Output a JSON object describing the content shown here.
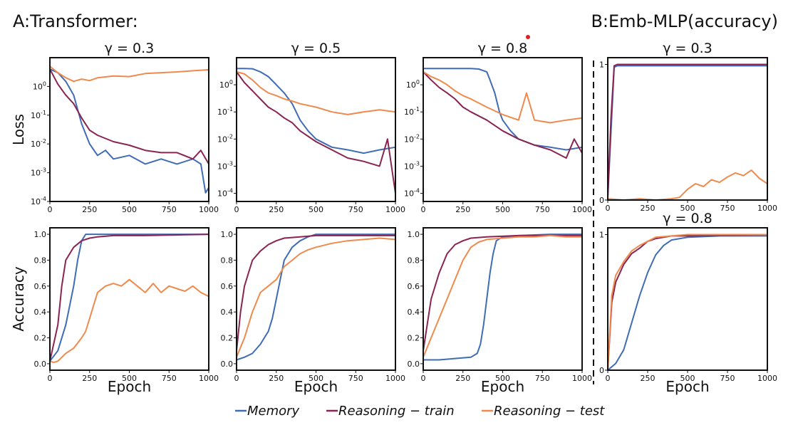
{
  "figure": {
    "panel_a_title": "A:Transformer:",
    "panel_b_title": "B:Emb-MLP(accuracy)"
  },
  "legend": [
    {
      "key": "memory",
      "label": "Memory",
      "color": "#3f6cb5"
    },
    {
      "key": "train",
      "label": "Reasoning − train",
      "color": "#8a2452"
    },
    {
      "key": "test",
      "label": "Reasoning − test",
      "color": "#ef8a4c"
    }
  ],
  "chart_data": [
    {
      "id": "loss-g03",
      "type": "line",
      "title": "γ = 0.3",
      "ylabel": "Loss",
      "xlabel": "",
      "xlim": [
        0,
        1000
      ],
      "xticks": [
        0,
        250,
        500,
        750,
        1000
      ],
      "xtick_labels": [
        "0",
        "250",
        "500",
        "750",
        "1000"
      ],
      "yscale": "log",
      "ylim": [
        0.0001,
        10
      ],
      "yticks": [
        0.0001,
        0.001,
        0.01,
        0.1,
        1
      ],
      "ytick_labels": [
        "10^-4",
        "10^-3",
        "10^-2",
        "10^-1",
        "10^0"
      ],
      "series": [
        {
          "key": "memory",
          "x": [
            0,
            50,
            100,
            150,
            200,
            250,
            300,
            350,
            400,
            500,
            600,
            700,
            800,
            900,
            950,
            980,
            1000
          ],
          "y": [
            4,
            3,
            1.5,
            0.5,
            0.05,
            0.01,
            0.004,
            0.006,
            0.003,
            0.004,
            0.002,
            0.003,
            0.002,
            0.003,
            0.002,
            0.0002,
            0.0003
          ]
        },
        {
          "key": "train",
          "x": [
            0,
            50,
            100,
            150,
            200,
            250,
            300,
            400,
            500,
            600,
            700,
            800,
            900,
            950,
            1000
          ],
          "y": [
            4,
            1.2,
            0.5,
            0.25,
            0.08,
            0.03,
            0.02,
            0.012,
            0.009,
            0.006,
            0.005,
            0.005,
            0.003,
            0.006,
            0.002
          ]
        },
        {
          "key": "test",
          "x": [
            0,
            50,
            100,
            150,
            200,
            250,
            300,
            400,
            500,
            600,
            700,
            800,
            900,
            1000
          ],
          "y": [
            5,
            3,
            2,
            1.5,
            1.8,
            1.6,
            2,
            2.3,
            2.2,
            2.8,
            3,
            3.2,
            3.5,
            3.8
          ]
        }
      ]
    },
    {
      "id": "loss-g05",
      "type": "line",
      "title": "γ = 0.5",
      "ylabel": "",
      "xlabel": "",
      "xlim": [
        0,
        1000
      ],
      "xticks": [
        0,
        250,
        500,
        750,
        1000
      ],
      "xtick_labels": [
        "0",
        "250",
        "500",
        "750",
        "1000"
      ],
      "yscale": "log",
      "ylim": [
        5e-05,
        10
      ],
      "yticks": [
        0.0001,
        0.001,
        0.01,
        0.1,
        1
      ],
      "ytick_labels": [
        "10^-4",
        "10^-3",
        "10^-2",
        "10^-1",
        "10^0"
      ],
      "series": [
        {
          "key": "memory",
          "x": [
            0,
            50,
            100,
            150,
            200,
            250,
            300,
            350,
            400,
            450,
            500,
            600,
            700,
            800,
            900,
            1000
          ],
          "y": [
            4,
            4,
            3.9,
            3,
            2,
            1,
            0.5,
            0.2,
            0.05,
            0.02,
            0.01,
            0.005,
            0.004,
            0.003,
            0.004,
            0.005
          ]
        },
        {
          "key": "train",
          "x": [
            0,
            50,
            100,
            150,
            200,
            250,
            300,
            350,
            400,
            500,
            600,
            700,
            800,
            900,
            950,
            1000
          ],
          "y": [
            3,
            1.2,
            0.6,
            0.3,
            0.15,
            0.1,
            0.06,
            0.04,
            0.02,
            0.008,
            0.004,
            0.002,
            0.0015,
            0.001,
            0.01,
            0.0001
          ]
        },
        {
          "key": "test",
          "x": [
            0,
            50,
            100,
            150,
            200,
            250,
            300,
            350,
            400,
            500,
            600,
            700,
            800,
            900,
            1000
          ],
          "y": [
            3,
            2.5,
            1.5,
            0.8,
            0.5,
            0.4,
            0.3,
            0.25,
            0.2,
            0.15,
            0.1,
            0.08,
            0.1,
            0.12,
            0.1
          ]
        }
      ]
    },
    {
      "id": "loss-g08",
      "type": "line",
      "title": "γ = 0.8",
      "ylabel": "",
      "xlabel": "",
      "xlim": [
        0,
        1000
      ],
      "xticks": [
        0,
        250,
        500,
        750,
        1000
      ],
      "xtick_labels": [
        "0",
        "250",
        "500",
        "750",
        "1000"
      ],
      "yscale": "log",
      "ylim": [
        5e-05,
        10
      ],
      "yticks": [
        0.0001,
        0.001,
        0.01,
        0.1,
        1
      ],
      "ytick_labels": [
        "10^-4",
        "10^-3",
        "10^-2",
        "10^-1",
        "10^0"
      ],
      "series": [
        {
          "key": "memory",
          "x": [
            0,
            100,
            200,
            300,
            350,
            400,
            420,
            450,
            480,
            500,
            550,
            600,
            700,
            800,
            900,
            1000
          ],
          "y": [
            4,
            4,
            4,
            4,
            3.8,
            3,
            1.5,
            0.5,
            0.1,
            0.05,
            0.02,
            0.01,
            0.006,
            0.005,
            0.004,
            0.005
          ]
        },
        {
          "key": "train",
          "x": [
            0,
            50,
            100,
            150,
            200,
            250,
            300,
            400,
            500,
            600,
            700,
            800,
            900,
            950,
            1000
          ],
          "y": [
            3,
            1.5,
            0.8,
            0.5,
            0.3,
            0.15,
            0.1,
            0.05,
            0.02,
            0.01,
            0.006,
            0.004,
            0.002,
            0.01,
            0.003
          ]
        },
        {
          "key": "test",
          "x": [
            0,
            50,
            100,
            150,
            200,
            250,
            300,
            400,
            500,
            600,
            650,
            700,
            800,
            900,
            1000
          ],
          "y": [
            3,
            2,
            1.5,
            1,
            0.6,
            0.4,
            0.3,
            0.15,
            0.08,
            0.05,
            0.5,
            0.05,
            0.04,
            0.05,
            0.06
          ]
        }
      ]
    },
    {
      "id": "acc-g03",
      "type": "line",
      "title": "",
      "ylabel": "Accuracy",
      "xlabel": "Epoch",
      "xlim": [
        0,
        1000
      ],
      "xticks": [
        0,
        250,
        500,
        750,
        1000
      ],
      "xtick_labels": [
        "0",
        "250",
        "500",
        "750",
        "1000"
      ],
      "yscale": "linear",
      "ylim": [
        -0.05,
        1.05
      ],
      "yticks": [
        0,
        0.2,
        0.4,
        0.6,
        0.8,
        1.0
      ],
      "ytick_labels": [
        "0.0",
        "0.2",
        "0.4",
        "0.6",
        "0.8",
        "1.0"
      ],
      "series": [
        {
          "key": "memory",
          "x": [
            0,
            50,
            100,
            150,
            175,
            200,
            225,
            250,
            300,
            500,
            750,
            1000
          ],
          "y": [
            0.02,
            0.1,
            0.3,
            0.6,
            0.8,
            0.95,
            1.0,
            1.0,
            1.0,
            1.0,
            1.0,
            1.0
          ]
        },
        {
          "key": "train",
          "x": [
            0,
            50,
            75,
            100,
            150,
            200,
            250,
            300,
            400,
            600,
            800,
            1000
          ],
          "y": [
            0.02,
            0.3,
            0.6,
            0.8,
            0.9,
            0.95,
            0.97,
            0.98,
            0.99,
            0.99,
            0.995,
            1.0
          ]
        },
        {
          "key": "test",
          "x": [
            0,
            25,
            50,
            100,
            150,
            200,
            225,
            250,
            275,
            300,
            350,
            400,
            450,
            500,
            550,
            600,
            650,
            700,
            750,
            800,
            850,
            900,
            950,
            1000
          ],
          "y": [
            0.02,
            0.01,
            0.02,
            0.08,
            0.12,
            0.2,
            0.25,
            0.35,
            0.45,
            0.55,
            0.6,
            0.62,
            0.6,
            0.65,
            0.6,
            0.55,
            0.62,
            0.55,
            0.6,
            0.58,
            0.56,
            0.6,
            0.55,
            0.52
          ]
        }
      ]
    },
    {
      "id": "acc-g05",
      "type": "line",
      "title": "",
      "ylabel": "",
      "xlabel": "Epoch",
      "xlim": [
        0,
        1000
      ],
      "xticks": [
        0,
        250,
        500,
        750,
        1000
      ],
      "xtick_labels": [
        "0",
        "250",
        "500",
        "750",
        "1000"
      ],
      "yscale": "linear",
      "ylim": [
        -0.05,
        1.05
      ],
      "yticks": [
        0,
        0.2,
        0.4,
        0.6,
        0.8,
        1.0
      ],
      "ytick_labels": [
        "0.0",
        "0.2",
        "0.4",
        "0.6",
        "0.8",
        "1.0"
      ],
      "series": [
        {
          "key": "memory",
          "x": [
            0,
            50,
            100,
            150,
            200,
            225,
            250,
            275,
            300,
            350,
            400,
            450,
            500,
            600,
            800,
            1000
          ],
          "y": [
            0.03,
            0.05,
            0.08,
            0.15,
            0.25,
            0.35,
            0.5,
            0.65,
            0.8,
            0.9,
            0.95,
            0.98,
            1.0,
            1.0,
            1.0,
            1.0
          ]
        },
        {
          "key": "train",
          "x": [
            0,
            25,
            50,
            100,
            150,
            200,
            250,
            300,
            400,
            500,
            700,
            1000
          ],
          "y": [
            0.1,
            0.4,
            0.6,
            0.8,
            0.87,
            0.92,
            0.95,
            0.97,
            0.98,
            0.99,
            0.99,
            0.99
          ]
        },
        {
          "key": "test",
          "x": [
            0,
            50,
            100,
            150,
            200,
            250,
            300,
            350,
            400,
            450,
            500,
            600,
            700,
            800,
            900,
            1000
          ],
          "y": [
            0.05,
            0.2,
            0.4,
            0.55,
            0.6,
            0.65,
            0.75,
            0.8,
            0.85,
            0.88,
            0.9,
            0.93,
            0.95,
            0.96,
            0.97,
            0.96
          ]
        }
      ]
    },
    {
      "id": "acc-g08",
      "type": "line",
      "title": "",
      "ylabel": "",
      "xlabel": "Epoch",
      "xlim": [
        0,
        1000
      ],
      "xticks": [
        0,
        250,
        500,
        750,
        1000
      ],
      "xtick_labels": [
        "0",
        "250",
        "500",
        "750",
        "1000"
      ],
      "yscale": "linear",
      "ylim": [
        -0.05,
        1.05
      ],
      "yticks": [
        0,
        0.2,
        0.4,
        0.6,
        0.8,
        1.0
      ],
      "ytick_labels": [
        "0.0",
        "0.2",
        "0.4",
        "0.6",
        "0.8",
        "1.0"
      ],
      "series": [
        {
          "key": "memory",
          "x": [
            0,
            100,
            200,
            300,
            340,
            360,
            380,
            400,
            420,
            440,
            460,
            500,
            600,
            800,
            1000
          ],
          "y": [
            0.03,
            0.03,
            0.04,
            0.05,
            0.08,
            0.15,
            0.3,
            0.5,
            0.7,
            0.85,
            0.95,
            0.98,
            0.99,
            1.0,
            1.0
          ]
        },
        {
          "key": "train",
          "x": [
            0,
            50,
            100,
            150,
            200,
            250,
            300,
            400,
            600,
            800,
            1000
          ],
          "y": [
            0.1,
            0.5,
            0.7,
            0.85,
            0.92,
            0.95,
            0.97,
            0.98,
            0.99,
            0.99,
            0.99
          ]
        },
        {
          "key": "test",
          "x": [
            0,
            50,
            100,
            150,
            200,
            250,
            300,
            350,
            400,
            500,
            600,
            700,
            800,
            900,
            1000
          ],
          "y": [
            0.05,
            0.2,
            0.35,
            0.5,
            0.65,
            0.8,
            0.9,
            0.94,
            0.96,
            0.97,
            0.98,
            0.98,
            0.99,
            0.98,
            0.98
          ]
        }
      ]
    },
    {
      "id": "emb-g03",
      "type": "line",
      "title": "γ = 0.3",
      "ylabel": "",
      "xlabel": "",
      "xlim": [
        0,
        1000
      ],
      "xticks": [
        0,
        250,
        500,
        750,
        1000
      ],
      "xtick_labels": [
        "0",
        "250",
        "500",
        "750",
        "1000"
      ],
      "yscale": "linear",
      "ylim": [
        0,
        1.05
      ],
      "yticks": [
        0,
        1
      ],
      "ytick_labels": [
        "0",
        "1"
      ],
      "series": [
        {
          "key": "memory",
          "x": [
            0,
            20,
            40,
            60,
            100,
            500,
            1000
          ],
          "y": [
            0.02,
            0.5,
            0.98,
            0.99,
            0.99,
            0.99,
            0.99
          ]
        },
        {
          "key": "train",
          "x": [
            0,
            20,
            40,
            60,
            100,
            500,
            1000
          ],
          "y": [
            0.02,
            0.6,
            0.99,
            1.0,
            1.0,
            1.0,
            1.0
          ]
        },
        {
          "key": "test",
          "x": [
            0,
            100,
            200,
            300,
            400,
            450,
            500,
            550,
            600,
            650,
            700,
            750,
            800,
            850,
            900,
            950,
            1000
          ],
          "y": [
            0.01,
            0.0,
            0.01,
            0.0,
            0.01,
            0.02,
            0.08,
            0.12,
            0.1,
            0.15,
            0.13,
            0.17,
            0.2,
            0.18,
            0.22,
            0.16,
            0.12
          ]
        }
      ]
    },
    {
      "id": "emb-g08",
      "type": "line",
      "title": "γ = 0.8",
      "ylabel": "",
      "xlabel": "Epoch",
      "xlim": [
        0,
        1000
      ],
      "xticks": [
        0,
        250,
        500,
        750,
        1000
      ],
      "xtick_labels": [
        "0",
        "250",
        "500",
        "750",
        "1000"
      ],
      "yscale": "linear",
      "ylim": [
        0,
        1.05
      ],
      "yticks": [
        0,
        1
      ],
      "ytick_labels": [
        "0",
        "1"
      ],
      "series": [
        {
          "key": "memory",
          "x": [
            0,
            50,
            100,
            150,
            200,
            250,
            300,
            350,
            400,
            500,
            700,
            1000
          ],
          "y": [
            0.0,
            0.05,
            0.15,
            0.35,
            0.55,
            0.72,
            0.85,
            0.92,
            0.96,
            0.98,
            0.99,
            0.99
          ]
        },
        {
          "key": "train",
          "x": [
            0,
            25,
            50,
            100,
            150,
            200,
            250,
            300,
            400,
            500,
            1000
          ],
          "y": [
            0.0,
            0.5,
            0.65,
            0.78,
            0.86,
            0.9,
            0.95,
            0.97,
            0.99,
            0.99,
            1.0
          ]
        },
        {
          "key": "test",
          "x": [
            0,
            25,
            50,
            100,
            150,
            200,
            250,
            300,
            400,
            500,
            1000
          ],
          "y": [
            0.0,
            0.55,
            0.7,
            0.8,
            0.88,
            0.92,
            0.95,
            0.98,
            0.99,
            1.0,
            1.0
          ]
        }
      ]
    }
  ]
}
